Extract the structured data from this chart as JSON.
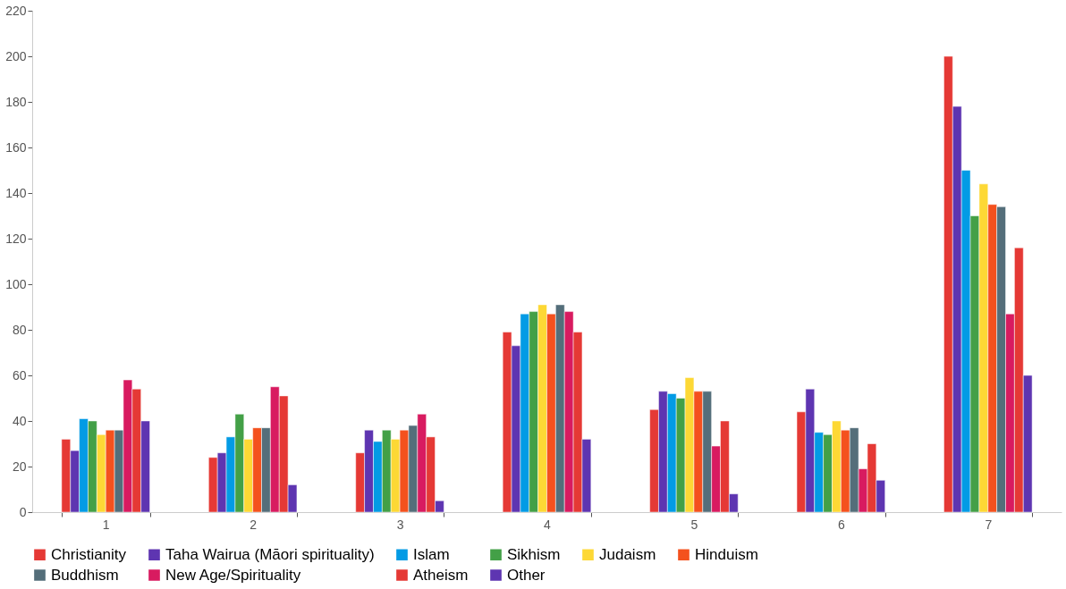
{
  "chart_data": {
    "type": "bar",
    "categories": [
      "1",
      "2",
      "3",
      "4",
      "5",
      "6",
      "7"
    ],
    "series": [
      {
        "name": "Christianity",
        "color": "#e53935",
        "values": [
          32,
          24,
          26,
          79,
          45,
          44,
          200
        ]
      },
      {
        "name": "Taha Wairua (Māori spirituality)",
        "color": "#5e35b1",
        "values": [
          27,
          26,
          36,
          73,
          53,
          54,
          178
        ]
      },
      {
        "name": "Islam",
        "color": "#039be5",
        "values": [
          41,
          33,
          31,
          87,
          52,
          35,
          150
        ]
      },
      {
        "name": "Sikhism",
        "color": "#43a047",
        "values": [
          40,
          43,
          36,
          88,
          50,
          34,
          130
        ]
      },
      {
        "name": "Judaism",
        "color": "#fdd835",
        "values": [
          34,
          32,
          32,
          91,
          59,
          40,
          144
        ]
      },
      {
        "name": "Hinduism",
        "color": "#f4511e",
        "values": [
          36,
          37,
          36,
          87,
          53,
          36,
          135
        ]
      },
      {
        "name": "Buddhism",
        "color": "#546e7a",
        "values": [
          36,
          37,
          38,
          91,
          53,
          37,
          134
        ]
      },
      {
        "name": "New Age/Spirituality",
        "color": "#d81b60",
        "values": [
          58,
          55,
          43,
          88,
          29,
          19,
          87
        ]
      },
      {
        "name": "Atheism",
        "color": "#e53935",
        "values": [
          54,
          51,
          33,
          79,
          40,
          30,
          116
        ]
      },
      {
        "name": "Other",
        "color": "#5e35b1",
        "values": [
          40,
          12,
          5,
          32,
          8,
          14,
          60
        ]
      }
    ],
    "ylim": [
      0,
      220
    ],
    "yticks": [
      0,
      20,
      40,
      60,
      80,
      100,
      120,
      140,
      160,
      180,
      200,
      220
    ],
    "grid": false,
    "legend": "bottom"
  }
}
